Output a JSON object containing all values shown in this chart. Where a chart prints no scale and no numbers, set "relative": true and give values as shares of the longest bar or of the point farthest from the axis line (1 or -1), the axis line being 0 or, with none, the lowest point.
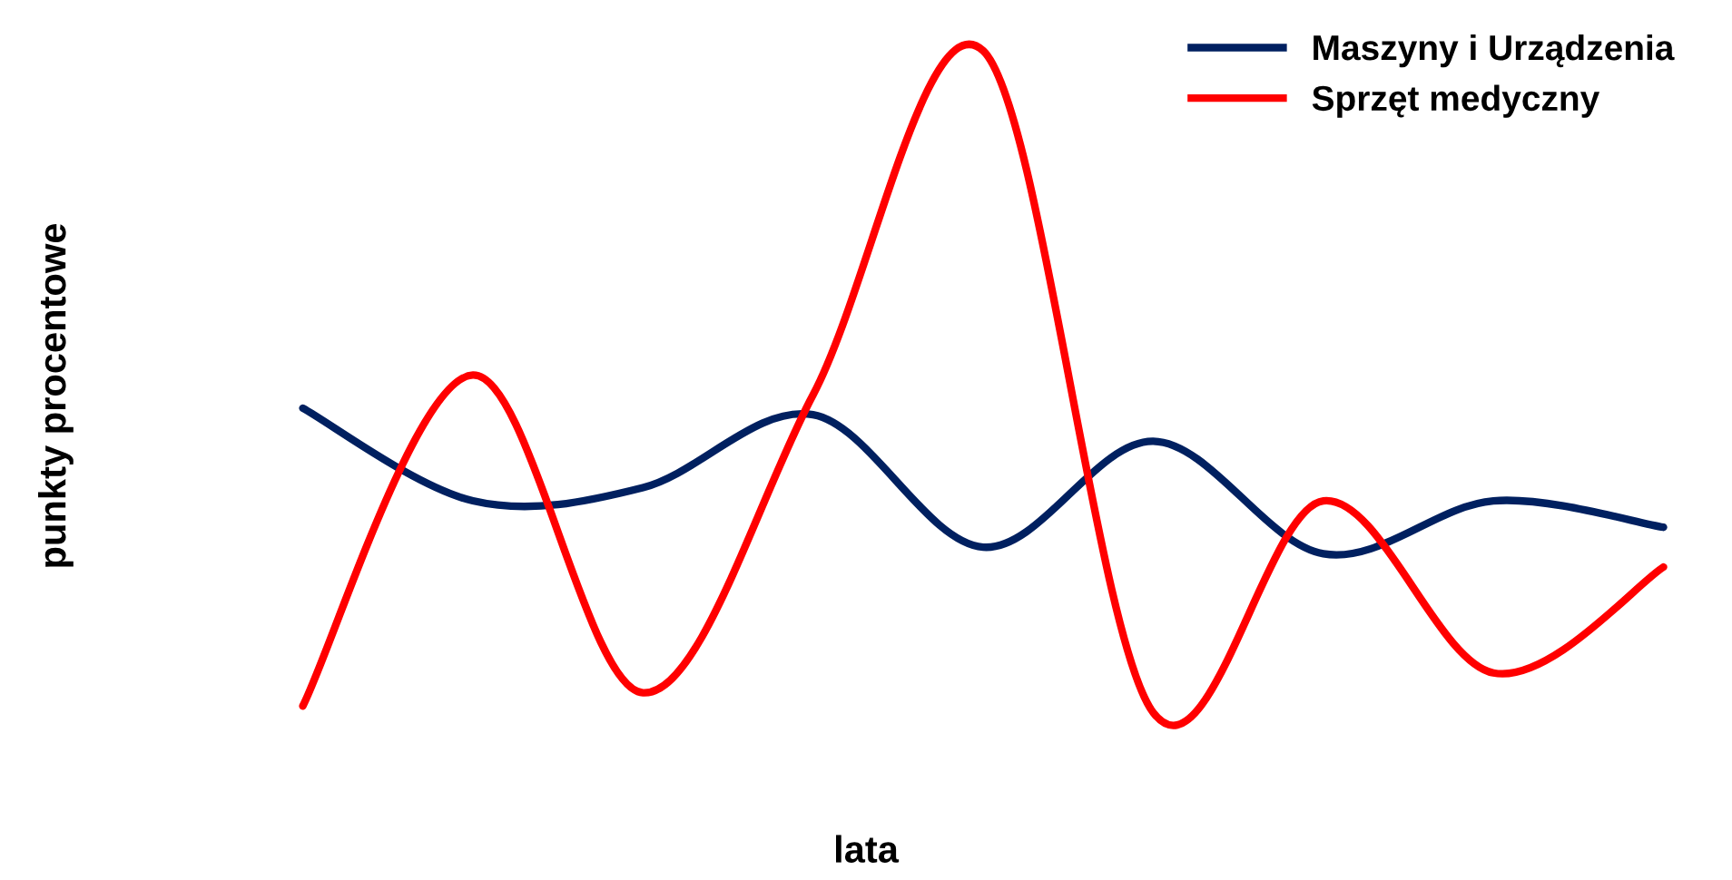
{
  "chart_data": {
    "type": "line",
    "relative": true,
    "xlabel": "lata",
    "ylabel": "punkty procentowe",
    "categories": [
      null,
      null,
      null,
      null,
      null,
      null,
      null,
      null,
      null
    ],
    "legend": "top right",
    "grid": false,
    "marker": "none",
    "line_style": "solid",
    "series": [
      {
        "name": "Maszyny i Urządzenia",
        "color": "#002060",
        "values": [
          0.46,
          0.32,
          0.34,
          0.45,
          0.25,
          0.41,
          0.24,
          0.32,
          0.28
        ]
      },
      {
        "name": "Sprzęt medyczny",
        "color": "#ff0000",
        "values": [
          0.01,
          0.51,
          0.03,
          0.48,
          1,
          0,
          0.32,
          0.06,
          0.22
        ]
      }
    ]
  }
}
